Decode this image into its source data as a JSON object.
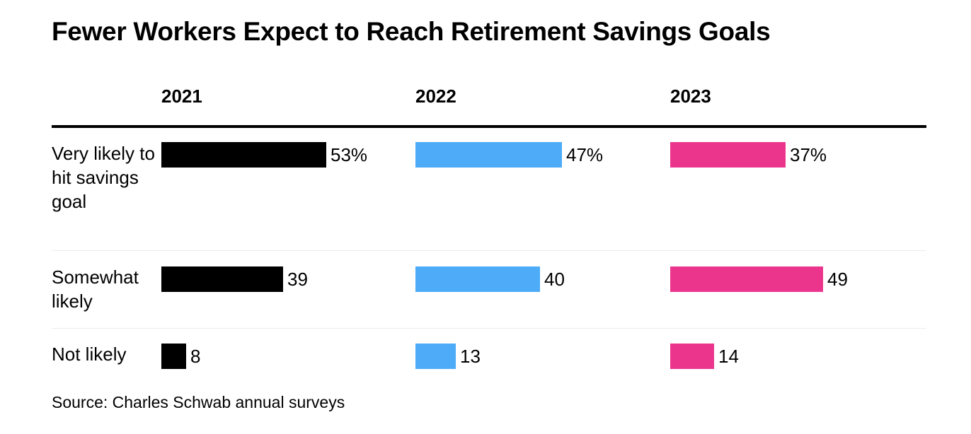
{
  "title": "Fewer Workers Expect to Reach Retirement Savings Goals",
  "source": "Source: Charles Schwab annual surveys",
  "colors": {
    "2021": "#000000",
    "2022": "#4dabf7",
    "2023": "#eb358c"
  },
  "chart_data": {
    "type": "bar",
    "orientation": "horizontal",
    "layout": "small-multiples",
    "categories": [
      "Very likely to hit savings goal",
      "Somewhat likely",
      "Not likely"
    ],
    "series": [
      {
        "name": "2021",
        "values": [
          53,
          39,
          8
        ],
        "labels": [
          "53%",
          "39",
          "8"
        ]
      },
      {
        "name": "2022",
        "values": [
          47,
          40,
          13
        ],
        "labels": [
          "47%",
          "40",
          "13"
        ]
      },
      {
        "name": "2023",
        "values": [
          37,
          49,
          14
        ],
        "labels": [
          "37%",
          "49",
          "14"
        ]
      }
    ],
    "unit": "%",
    "xlim": [
      0,
      100
    ],
    "grid": false,
    "legend": "column headers"
  }
}
